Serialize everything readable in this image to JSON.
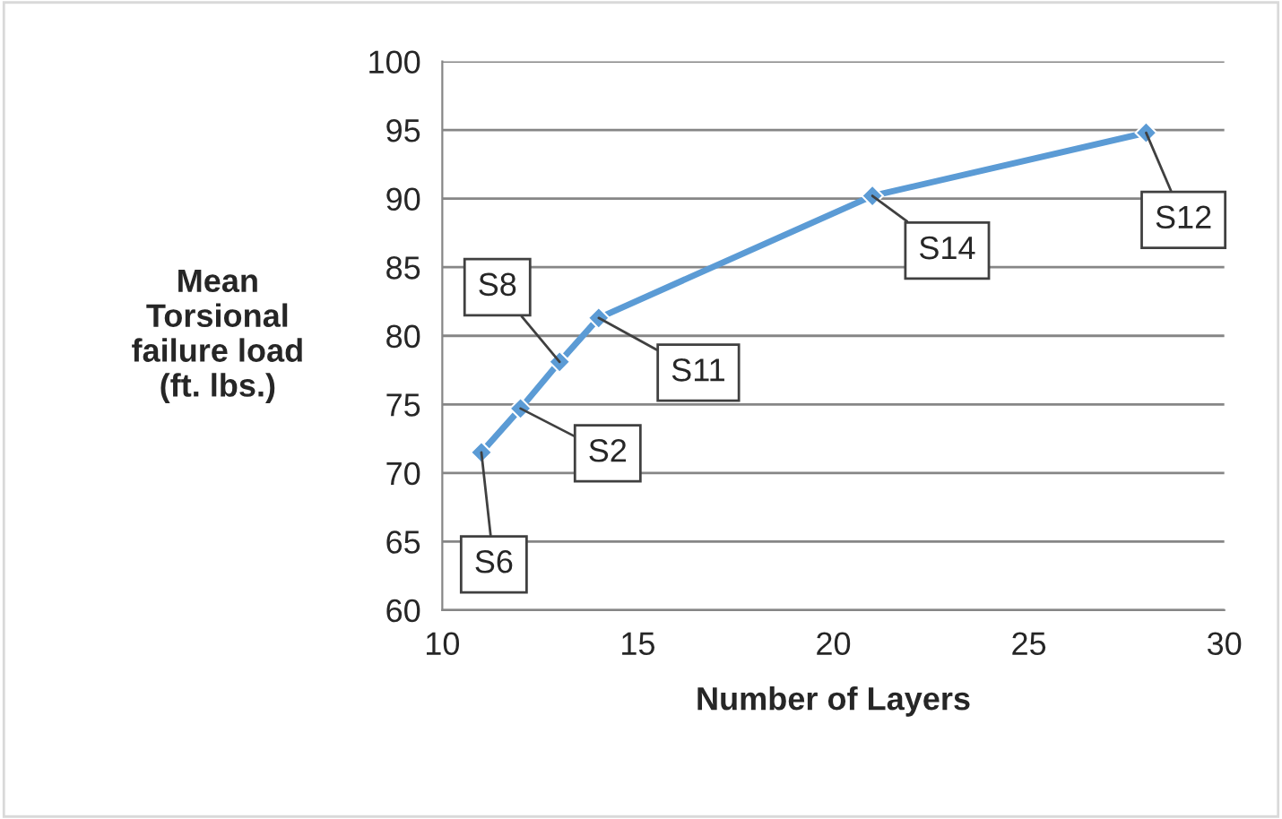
{
  "chart_data": {
    "type": "line",
    "xlabel": "Number of Layers",
    "ylabel": "Mean\nTorsional\nfailure load\n(ft. lbs.)",
    "x": [
      11,
      12,
      13,
      14,
      21,
      28
    ],
    "series": [
      {
        "color": "#5b9bd5",
        "values": [
          71.5,
          74.7,
          78.1,
          81.3,
          90.2,
          94.8
        ]
      }
    ],
    "xlim": [
      10,
      30
    ],
    "xticks": [
      10,
      15,
      20,
      25,
      30
    ],
    "ylim": [
      60,
      100
    ],
    "yticks": [
      60,
      65,
      70,
      75,
      80,
      85,
      90,
      95,
      100
    ],
    "grid": "y",
    "marker": "diamond",
    "line_style": "solid",
    "legend": false,
    "annotations": [
      {
        "text": "S6",
        "x": 11,
        "y": 71.5
      },
      {
        "text": "S2",
        "x": 12,
        "y": 74.7
      },
      {
        "text": "S8",
        "x": 13,
        "y": 78.1
      },
      {
        "text": "S11",
        "x": 14,
        "y": 81.3
      },
      {
        "text": "S14",
        "x": 21,
        "y": 90.2
      },
      {
        "text": "S12",
        "x": 28,
        "y": 94.8
      }
    ]
  }
}
